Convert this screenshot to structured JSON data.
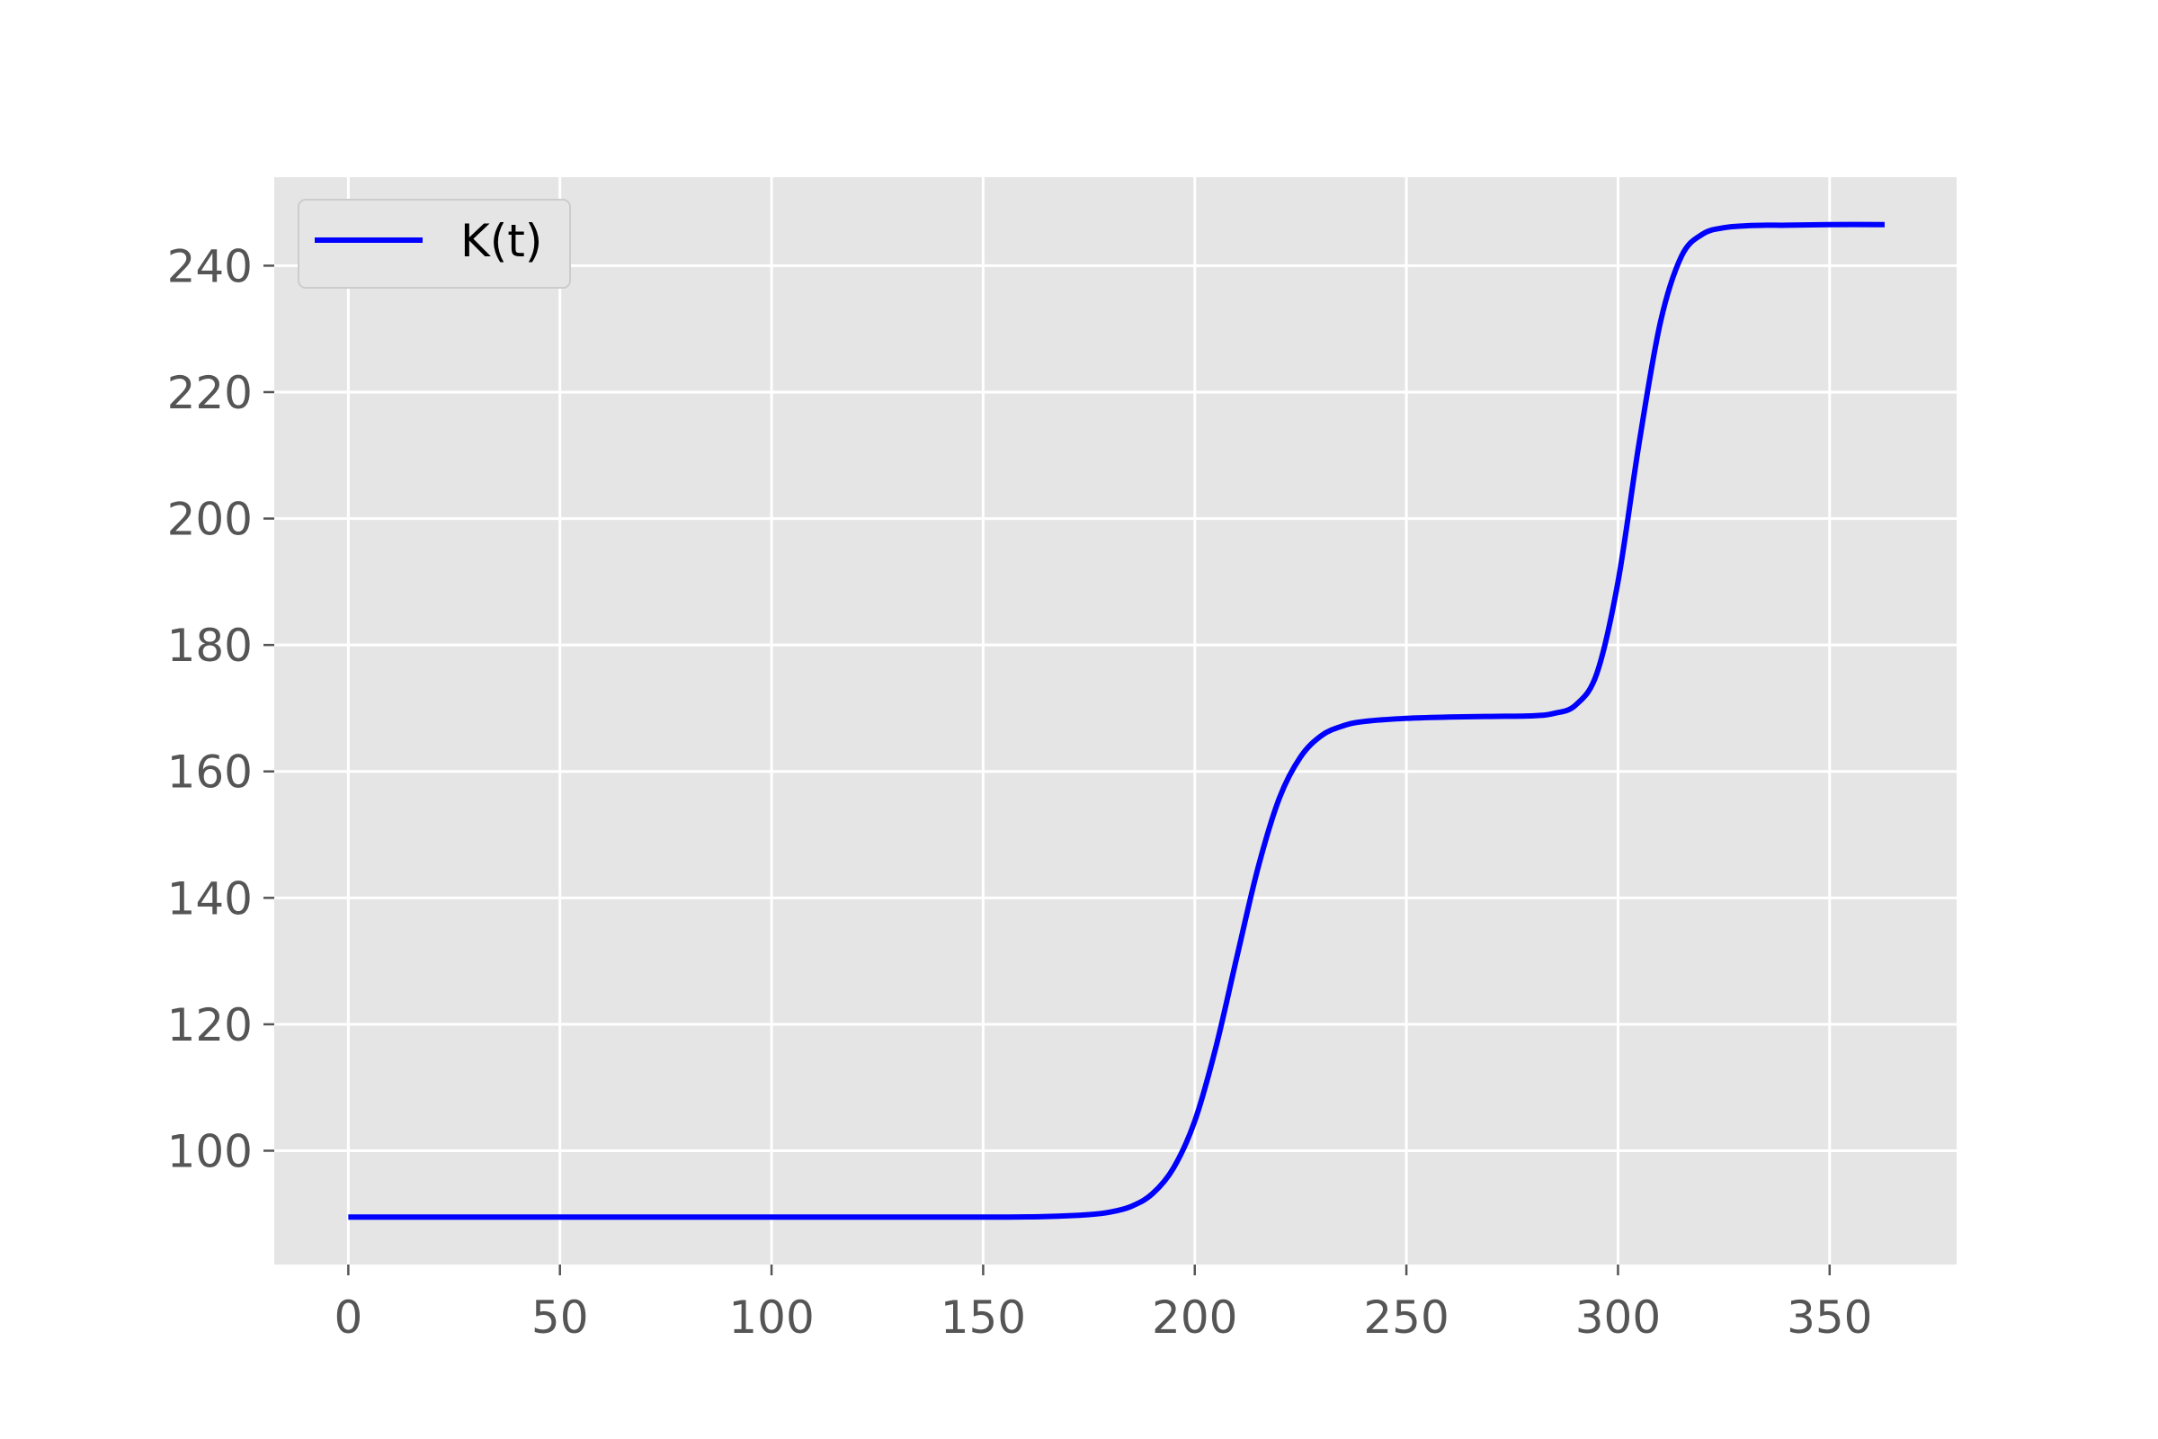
{
  "chart_data": {
    "type": "line",
    "title": "",
    "xlabel": "",
    "ylabel": "",
    "xlim": [
      -17.5,
      380
    ],
    "ylim": [
      82,
      254
    ],
    "xticks": [
      0,
      50,
      100,
      150,
      200,
      250,
      300,
      350
    ],
    "yticks": [
      100,
      120,
      140,
      160,
      180,
      200,
      220,
      240
    ],
    "grid": true,
    "legend": {
      "placement": "top-left",
      "entries": [
        "K(t)"
      ]
    },
    "colors": {
      "background": "#e5e5e5",
      "grid": "#ffffff",
      "line": "#0000ff",
      "tick": "#555555"
    },
    "series": [
      {
        "name": "K(t)",
        "x": [
          0,
          50,
          100,
          150,
          165,
          175,
          180,
          185,
          190,
          195,
          200,
          205,
          210,
          215,
          220,
          225,
          230,
          235,
          240,
          250,
          260,
          270,
          280,
          285,
          290,
          295,
          300,
          305,
          310,
          315,
          320,
          325,
          330,
          335,
          340,
          350,
          363
        ],
        "y": [
          89.5,
          89.5,
          89.5,
          89.5,
          89.6,
          89.9,
          90.3,
          91.2,
          93.2,
          97.3,
          104.7,
          116.4,
          130.8,
          144.9,
          155.8,
          162.3,
          165.7,
          167.2,
          167.9,
          168.4,
          168.6,
          168.7,
          168.8,
          169.2,
          170.5,
          175.5,
          190.0,
          212.0,
          231.0,
          241.5,
          245.0,
          246.0,
          246.3,
          246.4,
          246.4,
          246.5,
          246.5
        ]
      }
    ]
  }
}
